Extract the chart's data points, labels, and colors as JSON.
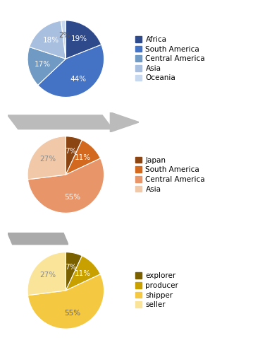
{
  "chart1": {
    "labels": [
      "Africa",
      "South America",
      "Central America",
      "Asia",
      "Oceania"
    ],
    "values": [
      19,
      44,
      17,
      18,
      2
    ],
    "colors": [
      "#2E4A8B",
      "#4472C4",
      "#7099C4",
      "#A8BFE0",
      "#C8D8EE"
    ],
    "legend_labels": [
      "Africa",
      "South America",
      "Central America",
      "Asia",
      "Oceania"
    ],
    "startangle": 90,
    "pct_colors": [
      "white",
      "white",
      "white",
      "white",
      "#555555"
    ]
  },
  "chart2": {
    "labels": [
      "Japan",
      "South America",
      "Central America",
      "Asia"
    ],
    "values": [
      7,
      11,
      55,
      27
    ],
    "colors": [
      "#8B4513",
      "#D2691E",
      "#E8956A",
      "#F2C9A8"
    ],
    "legend_labels": [
      "Japan",
      "South America",
      "Central America",
      "Asia"
    ],
    "startangle": 90,
    "pct_colors": [
      "white",
      "white",
      "white",
      "#888888"
    ]
  },
  "chart3": {
    "labels": [
      "explorer",
      "producer",
      "shipper",
      "seller"
    ],
    "values": [
      7,
      11,
      55,
      27
    ],
    "colors": [
      "#7B6000",
      "#C8A000",
      "#F5C842",
      "#FAE49A"
    ],
    "legend_labels": [
      "explorer",
      "producer",
      "shipper",
      "seller"
    ],
    "startangle": 90,
    "pct_colors": [
      "white",
      "white",
      "#666666",
      "#888888"
    ]
  },
  "arrow1_color": "#BBBBBB",
  "arrow2_color": "#AAAAAA",
  "bg_color": "#FFFFFF",
  "label_fontsize": 7.5,
  "legend_fontsize": 7.5
}
